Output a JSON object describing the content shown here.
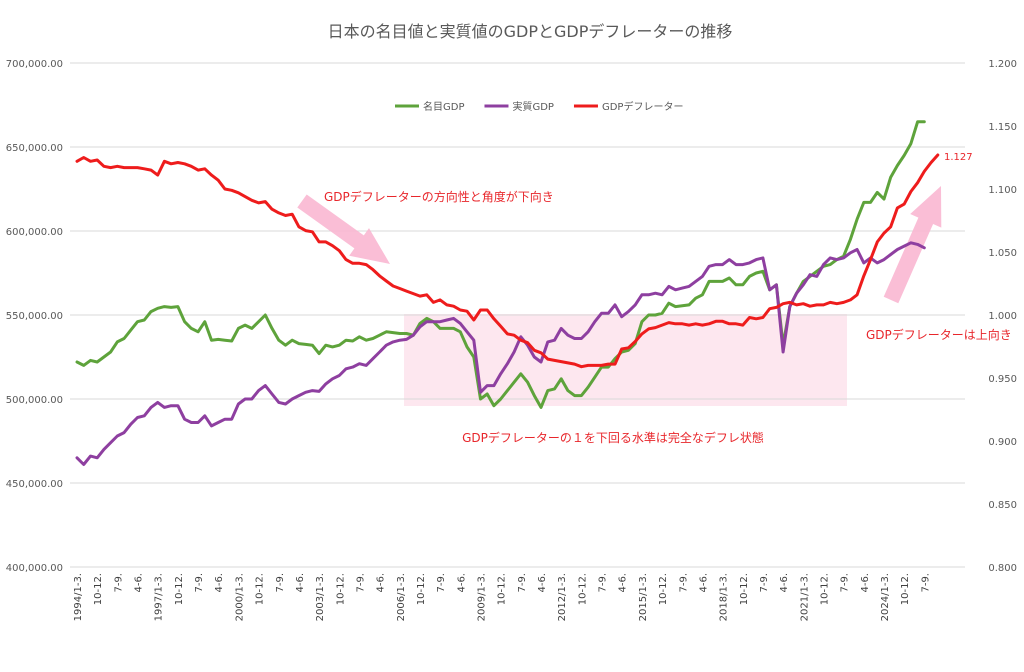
{
  "chart_data": {
    "type": "line",
    "title": "日本の名目値と実質値のGDPとGDPデフレーターの推移",
    "x_labels": [
      "1994/1-3.",
      "10-12.",
      "7-9.",
      "4-6.",
      "1997/1-3.",
      "10-12.",
      "7-9.",
      "4-6.",
      "2000/1-3.",
      "10-12.",
      "7-9.",
      "4-6.",
      "2003/1-3.",
      "10-12.",
      "7-9.",
      "4-6.",
      "2006/1-3.",
      "10-12.",
      "7-9.",
      "4-6.",
      "2009/1-3.",
      "10-12.",
      "7-9.",
      "4-6.",
      "2012/1-3.",
      "10-12.",
      "7-9.",
      "4-6.",
      "2015/1-3.",
      "10-12.",
      "7-9.",
      "4-6.",
      "2018/1-3.",
      "10-12.",
      "7-9.",
      "4-6.",
      "2021/1-3.",
      "10-12.",
      "7-9.",
      "4-6.",
      "2024/1-3.",
      "10-12.",
      "7-9."
    ],
    "x_start_year": 1994,
    "y_left": {
      "min": 400000,
      "max": 700000,
      "step": 50000,
      "tick_labels": [
        "400,000.00",
        "450,000.00",
        "500,000.00",
        "550,000.00",
        "600,000.00",
        "650,000.00",
        "700,000.00"
      ]
    },
    "y_right": {
      "min": 0.8,
      "max": 1.2,
      "step": 0.05,
      "tick_labels": [
        "0.800",
        "0.850",
        "0.900",
        "0.950",
        "1.000",
        "1.050",
        "1.100",
        "1.150",
        "1.200"
      ]
    },
    "legend": {
      "position": "top"
    },
    "grid": true,
    "series": [
      {
        "name": "名目GDP",
        "axis": "left",
        "color": "#5ea33b",
        "values": [
          522000,
          520000,
          523000,
          522000,
          525000,
          528000,
          534000,
          536000,
          541000,
          546000,
          547000,
          552000,
          554000,
          555000,
          554500,
          555000,
          546000,
          542000,
          540000,
          546000,
          535000,
          535500,
          535000,
          534500,
          542000,
          544000,
          542000,
          546000,
          550000,
          542000,
          535000,
          532000,
          535000,
          533000,
          532500,
          532000,
          527000,
          532000,
          531000,
          532000,
          535000,
          534500,
          537000,
          535000,
          536000,
          538000,
          540000,
          539500,
          539000,
          539000,
          538000,
          545000,
          548000,
          546000,
          542000,
          542000,
          542000,
          540000,
          531000,
          525000,
          500000,
          503000,
          496000,
          500000,
          505000,
          510000,
          515000,
          510000,
          502000,
          495000,
          505000,
          506000,
          512000,
          505000,
          502000,
          502000,
          507000,
          513000,
          519000,
          519000,
          524000,
          528000,
          529000,
          533000,
          546000,
          550000,
          550000,
          551000,
          557000,
          555000,
          555500,
          556000,
          560000,
          562000,
          570000,
          570000,
          570000,
          572000,
          568000,
          568000,
          573000,
          575000,
          576000,
          565000,
          568000,
          532000,
          555000,
          563000,
          570000,
          573000,
          576000,
          579000,
          580000,
          583000,
          585000,
          595000,
          607000,
          617000,
          617000,
          623000,
          619000,
          632000,
          639000,
          645000,
          652000,
          665000,
          665000
        ]
      },
      {
        "name": "実質GDP",
        "axis": "left",
        "color": "#8e3fa0",
        "values": [
          465000,
          461000,
          466000,
          465000,
          470000,
          474000,
          478000,
          480000,
          485000,
          489000,
          490000,
          495000,
          498000,
          495000,
          496000,
          496000,
          488000,
          486000,
          486000,
          490000,
          484000,
          486000,
          488000,
          488000,
          497000,
          500000,
          500000,
          505000,
          508000,
          503000,
          498000,
          497000,
          500000,
          502000,
          504000,
          505000,
          504500,
          509000,
          512000,
          514000,
          518000,
          519000,
          521000,
          520000,
          524000,
          528000,
          532000,
          534000,
          535000,
          535500,
          538000,
          543000,
          546000,
          546000,
          546000,
          547000,
          548000,
          545000,
          540000,
          535000,
          504000,
          508000,
          508000,
          515000,
          521000,
          528000,
          537000,
          532000,
          525000,
          522000,
          534000,
          535000,
          542000,
          538000,
          536000,
          536000,
          540000,
          546000,
          551000,
          551000,
          556000,
          549000,
          552000,
          556000,
          562000,
          562000,
          563000,
          562000,
          567000,
          565000,
          566000,
          567000,
          570000,
          573000,
          579000,
          580000,
          580000,
          583000,
          580000,
          580000,
          581000,
          583000,
          584000,
          565000,
          568000,
          528000,
          555000,
          563000,
          568000,
          574000,
          573000,
          580000,
          584000,
          583000,
          584000,
          587000,
          589000,
          581000,
          584000,
          581000,
          583000,
          586000,
          589000,
          591000,
          593000,
          592000,
          590000
        ]
      },
      {
        "name": "GDPデフレーター",
        "axis": "right",
        "color": "#ee1c1c",
        "end_label": "1.127",
        "values": [
          1.122,
          1.125,
          1.122,
          1.123,
          1.118,
          1.117,
          1.118,
          1.117,
          1.117,
          1.117,
          1.116,
          1.115,
          1.111,
          1.122,
          1.12,
          1.121,
          1.12,
          1.118,
          1.115,
          1.116,
          1.111,
          1.107,
          1.1,
          1.099,
          1.097,
          1.094,
          1.091,
          1.089,
          1.09,
          1.084,
          1.081,
          1.079,
          1.08,
          1.07,
          1.067,
          1.066,
          1.058,
          1.058,
          1.055,
          1.051,
          1.044,
          1.041,
          1.041,
          1.04,
          1.036,
          1.031,
          1.027,
          1.023,
          1.021,
          1.019,
          1.017,
          1.015,
          1.016,
          1.01,
          1.012,
          1.008,
          1.007,
          1.004,
          1.003,
          0.996,
          1.004,
          1.004,
          0.997,
          0.991,
          0.985,
          0.984,
          0.98,
          0.978,
          0.972,
          0.97,
          0.965,
          0.964,
          0.963,
          0.962,
          0.961,
          0.959,
          0.96,
          0.96,
          0.96,
          0.961,
          0.961,
          0.973,
          0.974,
          0.979,
          0.985,
          0.989,
          0.99,
          0.992,
          0.994,
          0.993,
          0.993,
          0.992,
          0.993,
          0.992,
          0.993,
          0.995,
          0.995,
          0.993,
          0.993,
          0.992,
          0.998,
          0.997,
          0.998,
          1.005,
          1.006,
          1.009,
          1.01,
          1.008,
          1.009,
          1.007,
          1.008,
          1.008,
          1.01,
          1.009,
          1.01,
          1.012,
          1.016,
          1.031,
          1.044,
          1.058,
          1.065,
          1.07,
          1.085,
          1.088,
          1.098,
          1.105,
          1.114,
          1.121,
          1.127
        ]
      }
    ],
    "annotations": [
      {
        "text": "GDPデフレーターの方向性と角度が下向き",
        "color": "#e8262b"
      },
      {
        "text": "GDPデフレーターの１を下回る水準は完全なデフレ状態",
        "color": "#e8262b"
      },
      {
        "text": "GDPデフレーターは上向き",
        "color": "#e8262b"
      }
    ]
  }
}
